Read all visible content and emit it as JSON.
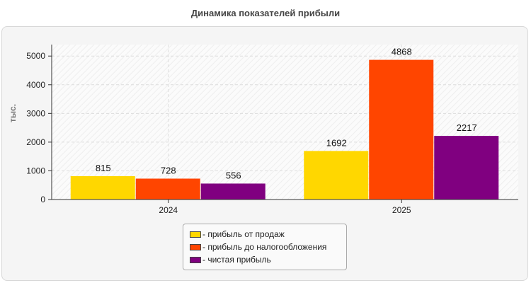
{
  "chart_data": {
    "type": "bar",
    "title": "Динамика показателей прибыли",
    "ylabel": "тыс.",
    "xlabel": "",
    "categories": [
      "2024",
      "2025"
    ],
    "ylim": [
      0,
      5400
    ],
    "yticks": [
      0,
      1000,
      2000,
      3000,
      4000,
      5000
    ],
    "grid": true,
    "legend_position": "bottom",
    "series": [
      {
        "name": "- прибыль от продаж",
        "values": [
          815,
          1692
        ],
        "color": "#FFD700"
      },
      {
        "name": "- прибыль до налогообложения",
        "values": [
          728,
          4868
        ],
        "color": "#FF4500"
      },
      {
        "name": "- чистая прибыль",
        "values": [
          556,
          2217
        ],
        "color": "#800080"
      }
    ]
  }
}
